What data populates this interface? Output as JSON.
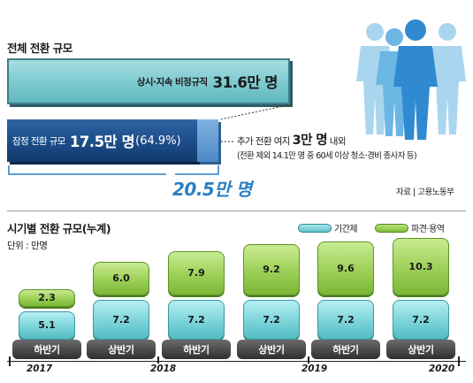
{
  "top": {
    "title": "전체 전환 규모",
    "full_bar": {
      "label": "상시·지속 비정규직",
      "value": "31.6만 명"
    },
    "part_bar": {
      "label": "잠정 전환 규모",
      "value": "17.5만 명",
      "pct": "(64.9%)"
    },
    "note_line1_pre": "추가 전환 여지",
    "note_line1_big": "3만 명",
    "note_line1_post": "내외",
    "note_line2": "(전환 제외 14.1만 명 중 60세 이상 청소·경비 종사자 등)",
    "total": "20.5만 명",
    "source": "자료 | 고용노동부"
  },
  "colors": {
    "full_bar": "#7cc9cf",
    "part_bar": "#1a4a86",
    "extra_bar": "#4d88c6",
    "total_text": "#2b7fc4",
    "series_a": "#7fd6dc",
    "series_b": "#9fd25a",
    "half_label": "#3a3a3a"
  },
  "icons": {
    "people": "people-group-icon"
  },
  "chart_data": {
    "type": "bar",
    "title": "시기별 전환 규모(누계)",
    "unit": "단위 : 만명",
    "categories": [
      "하반기",
      "상반기",
      "하반기",
      "상반기",
      "하반기",
      "상반기"
    ],
    "years": [
      "2017",
      "2018",
      "2019",
      "2020"
    ],
    "series": [
      {
        "name": "기간제",
        "values": [
          5.1,
          7.2,
          7.2,
          7.2,
          7.2,
          7.2
        ]
      },
      {
        "name": "파견·용역",
        "values": [
          2.3,
          6.0,
          7.9,
          9.2,
          9.6,
          10.3
        ]
      }
    ],
    "legend": "top-right",
    "grid": false
  }
}
